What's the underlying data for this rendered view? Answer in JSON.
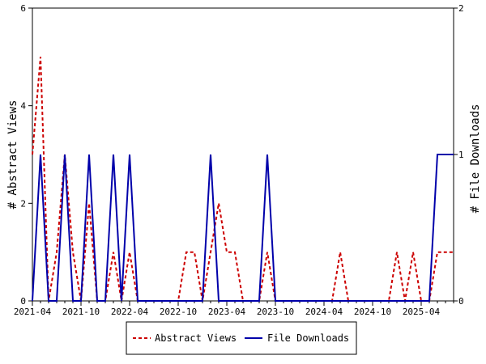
{
  "chart_data": {
    "type": "line",
    "ylabel_left": "# Abstract Views",
    "ylabel_right": "# File Downloads",
    "y_left_range": [
      0,
      6
    ],
    "y_right_range": [
      0,
      2
    ],
    "y_left_ticks": [
      "0",
      "2",
      "4",
      "6"
    ],
    "y_right_ticks": [
      "0",
      "1",
      "2"
    ],
    "x_tick_labels": [
      "2021-04",
      "2021-10",
      "2022-04",
      "2022-10",
      "2023-04",
      "2023-10",
      "2024-04",
      "2024-10",
      "2025-04"
    ],
    "x_tick_months": [
      0,
      6,
      12,
      18,
      24,
      30,
      36,
      42,
      48
    ],
    "x_range_months": [
      0,
      52
    ],
    "grid": false,
    "legend_position": "bottom-center",
    "series": [
      {
        "name": "Abstract Views",
        "axis": "left",
        "color": "#cc0000",
        "style": "dashed",
        "values": [
          3,
          5,
          0,
          1,
          3,
          1,
          0,
          2,
          0,
          0,
          1,
          0,
          1,
          0,
          0,
          0,
          0,
          0,
          0,
          1,
          1,
          0,
          1,
          2,
          1,
          1,
          0,
          0,
          0,
          1,
          0,
          0,
          0,
          0,
          0,
          0,
          0,
          0,
          1,
          0,
          0,
          0,
          0,
          0,
          0,
          1,
          0,
          1,
          0,
          0,
          1,
          1,
          1
        ]
      },
      {
        "name": "File Downloads",
        "axis": "right",
        "color": "#0000aa",
        "style": "solid",
        "values": [
          0,
          1,
          0,
          0,
          1,
          0,
          0,
          1,
          0,
          0,
          1,
          0,
          1,
          0,
          0,
          0,
          0,
          0,
          0,
          0,
          0,
          0,
          1,
          0,
          0,
          0,
          0,
          0,
          0,
          1,
          0,
          0,
          0,
          0,
          0,
          0,
          0,
          0,
          0,
          0,
          0,
          0,
          0,
          0,
          0,
          0,
          0,
          0,
          0,
          0,
          1,
          1,
          1
        ]
      }
    ]
  }
}
